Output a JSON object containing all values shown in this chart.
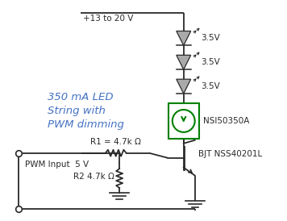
{
  "background_color": "#ffffff",
  "text_color": "#2a2a2a",
  "blue_text_color": "#4472c4",
  "green_color": "#008000",
  "dark_color": "#2a2a2a",
  "label_voltage": "+13 to 20 V",
  "label_led_voltage": "3.5V",
  "label_nsi": "NSI50350A",
  "label_bjt": "BJT NSS40201L",
  "label_r1": "R1 = 4.7k Ω",
  "label_r2": "R2 4.7k Ω",
  "label_pwm": "PWM Input  5 V",
  "label_main": "350 mA LED\nString with\nPWM dimming"
}
